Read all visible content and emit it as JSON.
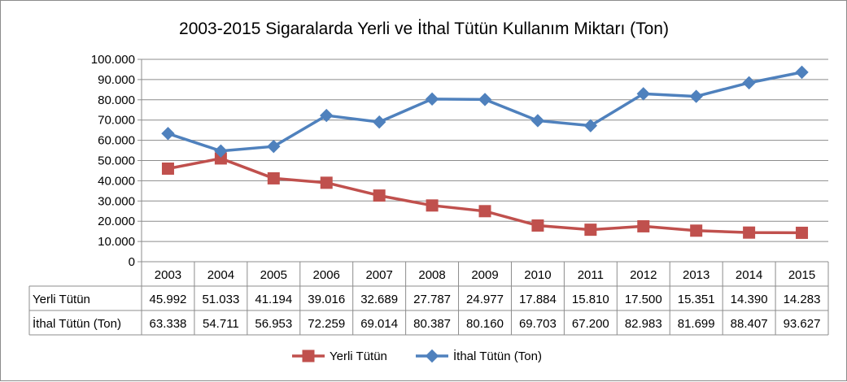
{
  "chart_data": {
    "type": "line",
    "title": "2003-2015 Sigaralarda Yerli ve İthal Tütün  Kullanım Miktarı  (Ton)",
    "categories": [
      "2003",
      "2004",
      "2005",
      "2006",
      "2007",
      "2008",
      "2009",
      "2010",
      "2011",
      "2012",
      "2013",
      "2014",
      "2015"
    ],
    "ylim": [
      0,
      100000
    ],
    "yticks": [
      {
        "value": 0,
        "label": "0"
      },
      {
        "value": 10000,
        "label": "10.000"
      },
      {
        "value": 20000,
        "label": "20.000"
      },
      {
        "value": 30000,
        "label": "30.000"
      },
      {
        "value": 40000,
        "label": "40.000"
      },
      {
        "value": 50000,
        "label": "50.000"
      },
      {
        "value": 60000,
        "label": "60.000"
      },
      {
        "value": 70000,
        "label": "70.000"
      },
      {
        "value": 80000,
        "label": "80.000"
      },
      {
        "value": 90000,
        "label": "90.000"
      },
      {
        "value": 100000,
        "label": "100.000"
      }
    ],
    "grid": true,
    "legend_position": "bottom",
    "data_table": true,
    "series": [
      {
        "name": "Yerli Tütün",
        "color": "#c0504d",
        "marker": "square",
        "values": [
          45992,
          51033,
          41194,
          39016,
          32689,
          27787,
          24977,
          17884,
          15810,
          17500,
          15351,
          14390,
          14283
        ],
        "labels": [
          "45.992",
          "51.033",
          "41.194",
          "39.016",
          "32.689",
          "27.787",
          "24.977",
          "17.884",
          "15.810",
          "17.500",
          "15.351",
          "14.390",
          "14.283"
        ]
      },
      {
        "name": "İthal Tütün (Ton)",
        "color": "#4f81bd",
        "marker": "diamond",
        "values": [
          63338,
          54711,
          56953,
          72259,
          69014,
          80387,
          80160,
          69703,
          67200,
          82983,
          81699,
          88407,
          93627
        ],
        "labels": [
          "63.338",
          "54.711",
          "56.953",
          "72.259",
          "69.014",
          "80.387",
          "80.160",
          "69.703",
          "67.200",
          "82.983",
          "81.699",
          "88.407",
          "93.627"
        ]
      }
    ]
  }
}
